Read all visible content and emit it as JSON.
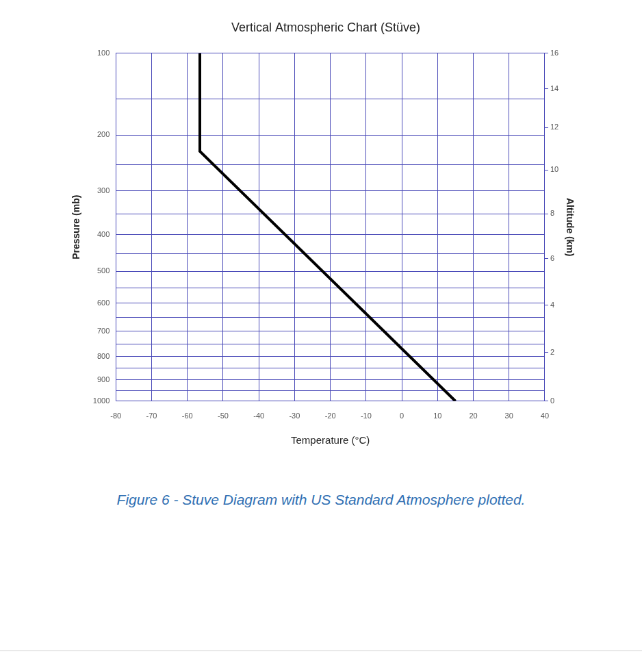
{
  "chart_data": {
    "type": "line",
    "title": "Vertical Atmospheric Chart (Stüve)",
    "x_label": "Temperature (°C)",
    "y_label": "Pressure (mb)",
    "y2_label": "Altitude (km)",
    "x": [
      15,
      -56.5,
      -56.5
    ],
    "values": [
      1000,
      226,
      100
    ],
    "color": "#000000",
    "xlim": [
      -80,
      40
    ],
    "xticks": [
      -80,
      -70,
      -60,
      -50,
      -40,
      -30,
      -20,
      -10,
      0,
      10,
      20,
      30,
      40
    ],
    "ylim": [
      100,
      1000
    ],
    "yticks": [
      100,
      200,
      300,
      400,
      500,
      600,
      700,
      800,
      900,
      1000
    ],
    "y_minor_ticks": [
      150,
      250,
      350,
      450,
      550,
      650,
      750,
      850,
      950
    ],
    "y2lim": [
      0,
      16
    ],
    "y2ticks": [
      0,
      2,
      4,
      6,
      8,
      10,
      12,
      14,
      16
    ],
    "grid": true
  },
  "caption": "Figure 6 - Stuve Diagram with US Standard Atmosphere plotted."
}
